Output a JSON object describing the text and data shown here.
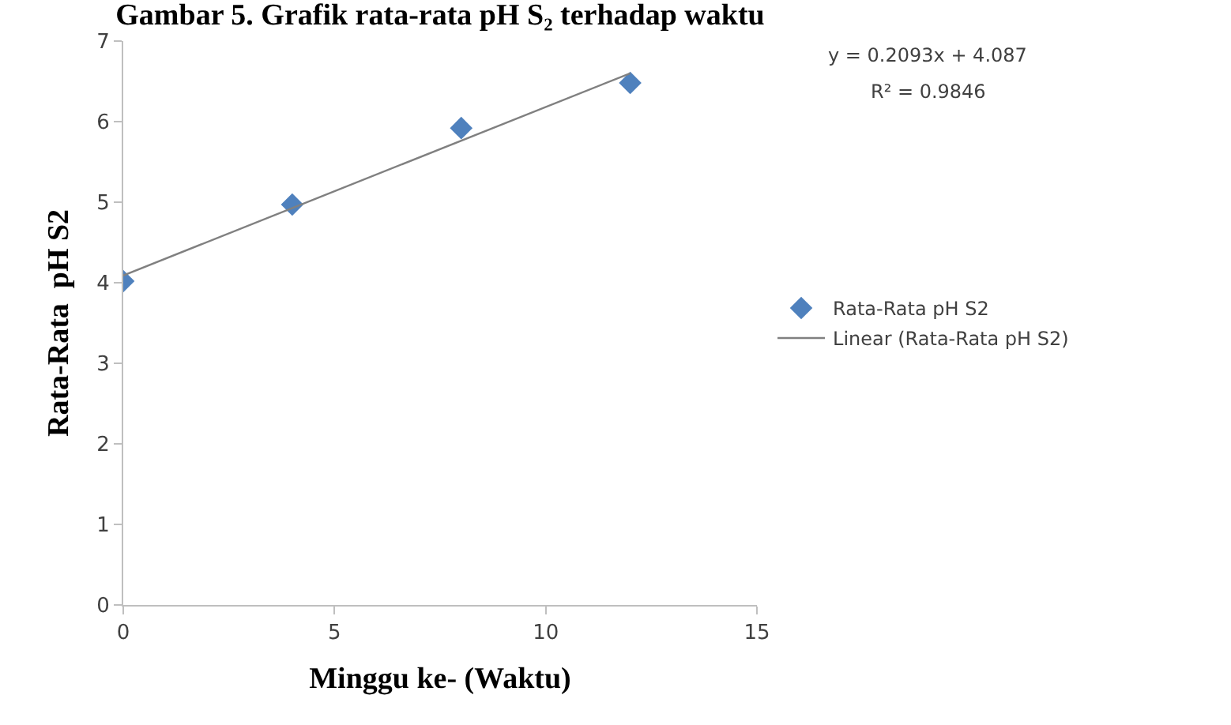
{
  "chart_data": {
    "type": "scatter",
    "title": "Gambar 5. Grafik rata-rata pH S₂ terhadap waktu",
    "xlabel": "Minggu ke- (Waktu)",
    "ylabel": "Rata-Rata  pH S2",
    "x": [
      0,
      4,
      8,
      12
    ],
    "series": [
      {
        "name": "Rata-Rata pH S2",
        "color": "#4f81bd",
        "marker": "diamond",
        "values": [
          4.02,
          4.97,
          5.92,
          6.48
        ]
      },
      {
        "name": "Linear (Rata-Rata pH S2)",
        "type": "line",
        "color": "#808080",
        "marker": "none",
        "x": [
          0,
          12
        ],
        "values": [
          4.09,
          6.6
        ]
      }
    ],
    "annotations": [
      "y = 0.2093x + 4.087",
      "R² = 0.9846"
    ],
    "xlim": [
      0,
      15
    ],
    "xticks": [
      0,
      5,
      10,
      15
    ],
    "ylim": [
      0,
      7
    ],
    "yticks": [
      0,
      1,
      2,
      3,
      4,
      5,
      6,
      7
    ],
    "grid": false,
    "legend": "right"
  }
}
